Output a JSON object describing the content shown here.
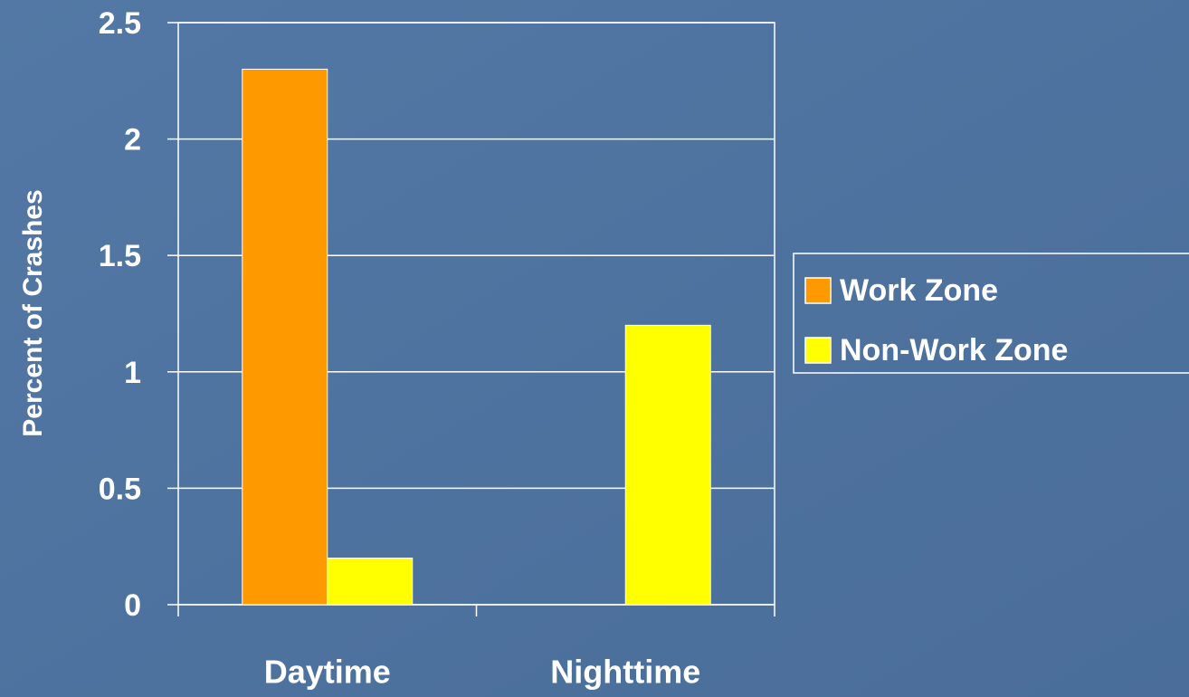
{
  "chart_data": {
    "type": "bar",
    "y_label": "Percent of Crashes",
    "categories": [
      "Daytime",
      "Nighttime"
    ],
    "series": [
      {
        "name": "Work Zone",
        "color": "#ff9900",
        "values": [
          2.3,
          0
        ]
      },
      {
        "name": "Non-Work Zone",
        "color": "#ffff00",
        "values": [
          0.2,
          1.2
        ]
      }
    ],
    "ylim": [
      0,
      2.5
    ],
    "yticks": [
      0,
      0.5,
      1,
      1.5,
      2,
      2.5
    ],
    "grid": true,
    "legend": "right"
  }
}
